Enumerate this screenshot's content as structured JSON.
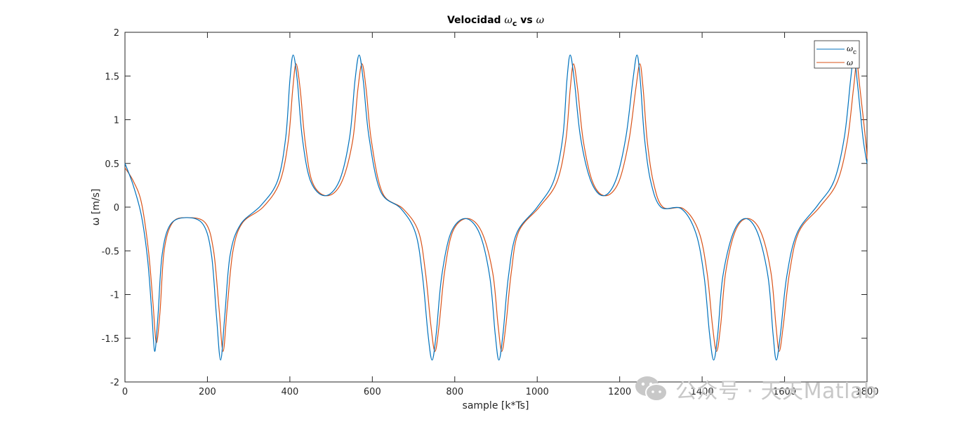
{
  "chart_data": {
    "type": "line",
    "title": {
      "prefix": "Velocidad ",
      "sym1": "ω",
      "sub1": "c",
      "mid": " vs ",
      "sym2": "ω"
    },
    "xlabel": "sample [k*Ts]",
    "ylabel": "ω [m/s]",
    "xlim": [
      0,
      1800
    ],
    "ylim": [
      -2,
      2
    ],
    "xticks": [
      0,
      200,
      400,
      600,
      800,
      1000,
      1200,
      1400,
      1600,
      1800
    ],
    "yticks": [
      -2,
      -1.5,
      -1,
      -0.5,
      0,
      0.5,
      1,
      1.5,
      2
    ],
    "grid": false,
    "legend_position": "top-right",
    "series": [
      {
        "name": "ωc",
        "legend_symbol": "ω",
        "legend_sub": "c",
        "color": "#0072BD",
        "x": [
          0,
          20,
          40,
          55,
          65,
          72,
          80,
          90,
          110,
          150,
          190,
          210,
          222,
          232,
          242,
          255,
          280,
          330,
          370,
          390,
          400,
          408,
          418,
          430,
          450,
          485,
          520,
          545,
          558,
          568,
          578,
          592,
          620,
          670,
          705,
          722,
          735,
          745,
          755,
          768,
          790,
          825,
          860,
          885,
          898,
          907,
          917,
          930,
          950,
          1000,
          1040,
          1062,
          1072,
          1080,
          1090,
          1105,
          1130,
          1160,
          1190,
          1215,
          1232,
          1242,
          1250,
          1260,
          1275,
          1300,
          1350,
          1385,
          1405,
          1418,
          1428,
          1438,
          1450,
          1475,
          1505,
          1535,
          1560,
          1572,
          1580,
          1590,
          1605,
          1630,
          1680,
          1720,
          1745,
          1760,
          1768,
          1776,
          1790,
          1800
        ],
        "y": [
          0.5,
          0.25,
          -0.1,
          -0.6,
          -1.2,
          -1.65,
          -1.25,
          -0.55,
          -0.2,
          -0.12,
          -0.2,
          -0.55,
          -1.25,
          -1.75,
          -1.25,
          -0.55,
          -0.2,
          0.02,
          0.3,
          0.8,
          1.45,
          1.74,
          1.45,
          0.8,
          0.3,
          0.13,
          0.3,
          0.8,
          1.45,
          1.74,
          1.45,
          0.8,
          0.18,
          -0.02,
          -0.3,
          -0.8,
          -1.45,
          -1.75,
          -1.45,
          -0.8,
          -0.3,
          -0.13,
          -0.3,
          -0.8,
          -1.45,
          -1.75,
          -1.45,
          -0.8,
          -0.3,
          0.0,
          0.3,
          0.8,
          1.45,
          1.74,
          1.45,
          0.8,
          0.3,
          0.13,
          0.3,
          0.8,
          1.45,
          1.74,
          1.45,
          0.8,
          0.3,
          0.0,
          -0.02,
          -0.3,
          -0.8,
          -1.45,
          -1.75,
          -1.45,
          -0.8,
          -0.3,
          -0.13,
          -0.3,
          -0.8,
          -1.45,
          -1.75,
          -1.45,
          -0.8,
          -0.3,
          0.02,
          0.3,
          0.8,
          1.45,
          1.74,
          1.45,
          0.8,
          0.5
        ]
      },
      {
        "name": "ω",
        "legend_symbol": "ω",
        "legend_sub": "",
        "color": "#D95319",
        "x": [
          0,
          20,
          40,
          57,
          68,
          76,
          85,
          95,
          115,
          150,
          195,
          215,
          228,
          238,
          248,
          262,
          285,
          335,
          375,
          396,
          407,
          415,
          425,
          437,
          455,
          490,
          525,
          552,
          565,
          575,
          585,
          598,
          625,
          675,
          712,
          729,
          742,
          752,
          762,
          775,
          795,
          830,
          865,
          892,
          905,
          914,
          924,
          937,
          955,
          1005,
          1047,
          1069,
          1080,
          1088,
          1098,
          1112,
          1135,
          1165,
          1197,
          1222,
          1239,
          1249,
          1257,
          1267,
          1282,
          1305,
          1355,
          1392,
          1412,
          1425,
          1435,
          1445,
          1457,
          1480,
          1510,
          1542,
          1567,
          1579,
          1587,
          1597,
          1612,
          1635,
          1685,
          1727,
          1752,
          1767,
          1775,
          1783,
          1797,
          1800
        ],
        "y": [
          0.45,
          0.3,
          0.05,
          -0.5,
          -1.1,
          -1.55,
          -1.2,
          -0.5,
          -0.18,
          -0.12,
          -0.18,
          -0.5,
          -1.15,
          -1.65,
          -1.15,
          -0.5,
          -0.18,
          0.0,
          0.28,
          0.75,
          1.35,
          1.64,
          1.35,
          0.75,
          0.28,
          0.13,
          0.28,
          0.75,
          1.35,
          1.64,
          1.35,
          0.75,
          0.16,
          -0.02,
          -0.28,
          -0.75,
          -1.35,
          -1.65,
          -1.35,
          -0.75,
          -0.28,
          -0.13,
          -0.28,
          -0.75,
          -1.35,
          -1.65,
          -1.35,
          -0.75,
          -0.28,
          0.0,
          0.28,
          0.75,
          1.35,
          1.64,
          1.35,
          0.75,
          0.28,
          0.13,
          0.28,
          0.75,
          1.35,
          1.64,
          1.35,
          0.75,
          0.28,
          0.0,
          -0.02,
          -0.28,
          -0.75,
          -1.35,
          -1.65,
          -1.35,
          -0.75,
          -0.28,
          -0.13,
          -0.28,
          -0.75,
          -1.35,
          -1.65,
          -1.35,
          -0.75,
          -0.28,
          0.0,
          0.28,
          0.75,
          1.35,
          1.64,
          1.35,
          0.75,
          0.55
        ]
      }
    ]
  },
  "watermark": {
    "text": "公众号 · 天天Matlab",
    "icon": "wechat-icon"
  }
}
